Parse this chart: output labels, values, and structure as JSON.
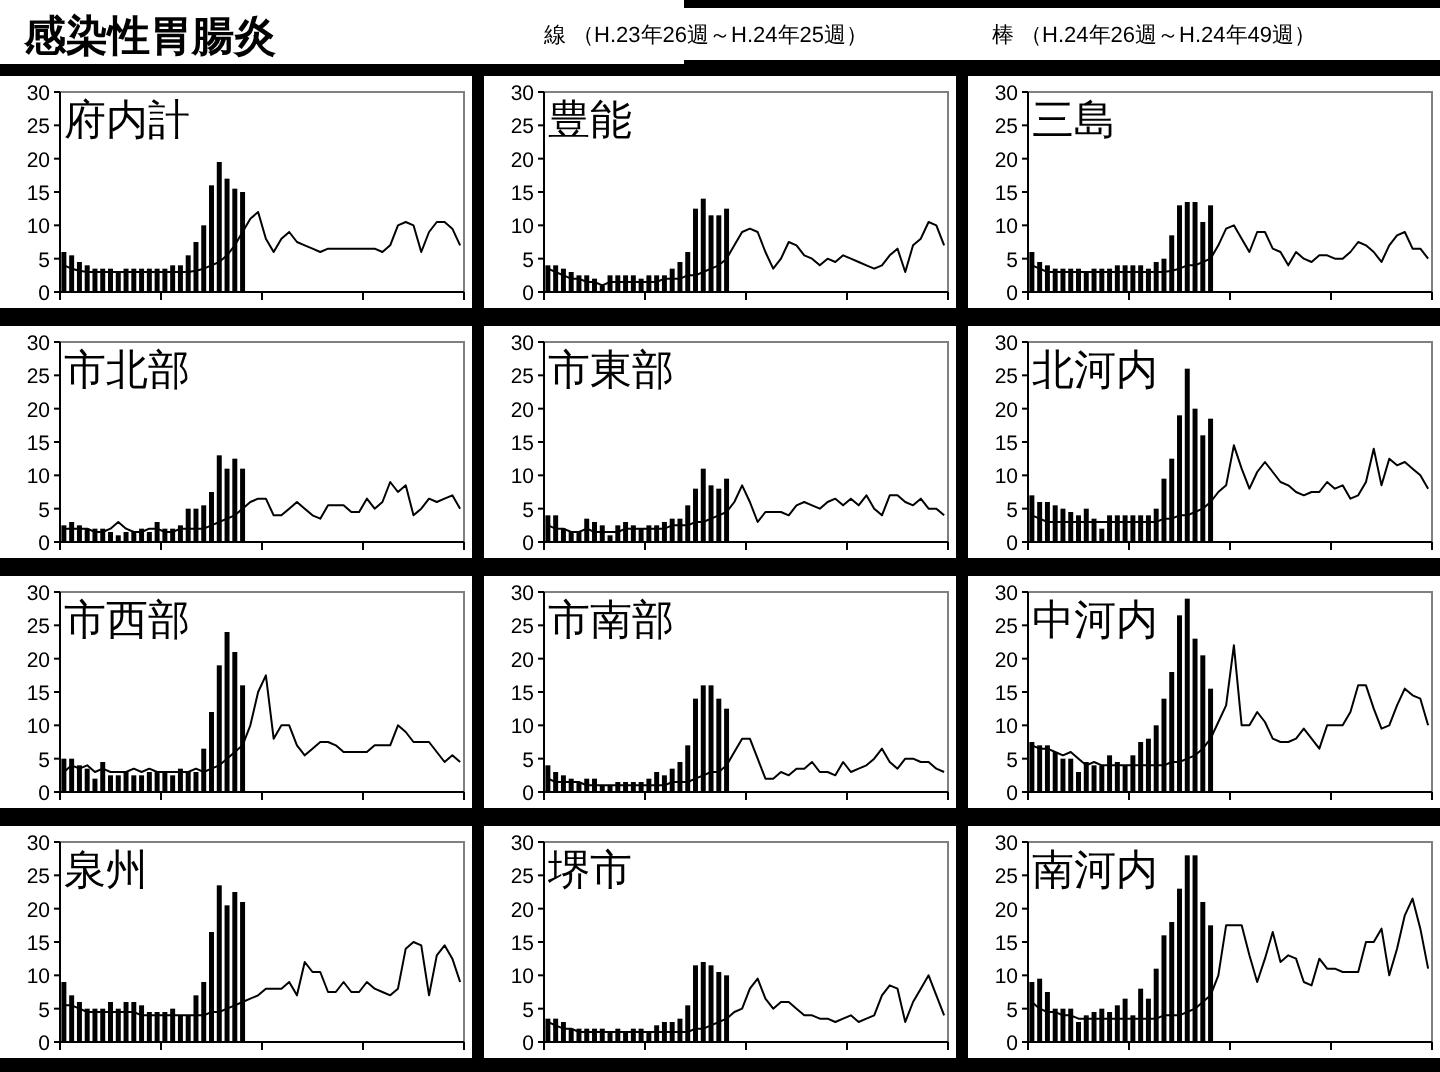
{
  "chart_data": [
    {
      "type": "other",
      "title": "感染性胃腸炎",
      "annotations": [
        "線 （H.23年26週～H.24年25週）",
        "棒 （H.24年26週～H.24年49週）"
      ]
    },
    {
      "type": "bar",
      "title": "府内計",
      "ylim": [
        0,
        30
      ],
      "yticks": [
        0,
        5,
        10,
        15,
        20,
        25,
        30
      ],
      "tick_labels": "y",
      "grid": false,
      "categories": [
        null,
        null,
        null,
        null,
        null,
        null,
        null,
        null,
        null,
        null,
        null,
        null,
        null,
        null,
        null,
        null,
        null,
        null,
        null,
        null,
        null,
        null,
        null,
        null,
        null,
        null,
        null,
        null,
        null,
        null,
        null,
        null,
        null,
        null,
        null,
        null,
        null,
        null,
        null,
        null,
        null,
        null,
        null,
        null,
        null,
        null,
        null,
        null,
        null,
        null,
        null,
        null
      ],
      "series": [
        {
          "type": "bar",
          "color": "#000000",
          "values": [
            6,
            5.5,
            4.5,
            4,
            3.5,
            3.5,
            3.5,
            3,
            3.5,
            3.5,
            3.5,
            3.5,
            3.5,
            3.5,
            4,
            4,
            5.5,
            7.5,
            10,
            16,
            19.5,
            17,
            15.5,
            15,
            null,
            null,
            null,
            null,
            null,
            null,
            null,
            null,
            null,
            null,
            null,
            null,
            null,
            null,
            null,
            null,
            null,
            null,
            null,
            null,
            null,
            null,
            null,
            null,
            null,
            null,
            null,
            null
          ]
        },
        {
          "type": "line",
          "color": "#000000",
          "values": [
            4,
            3.5,
            3.2,
            3,
            3,
            3,
            3,
            3,
            3,
            3,
            3,
            3,
            3,
            3,
            3,
            3,
            3,
            3.2,
            3.5,
            4,
            4.5,
            5.5,
            7,
            9,
            11,
            12,
            8,
            6,
            8,
            9,
            7.5,
            7,
            6.5,
            6,
            6.5,
            6.5,
            6.5,
            6.5,
            6.5,
            6.5,
            6.5,
            6,
            7,
            10,
            10.5,
            10,
            6,
            9,
            10.5,
            10.5,
            9.5,
            7
          ]
        }
      ]
    },
    {
      "type": "bar",
      "title": "豊能",
      "ylim": [
        0,
        30
      ],
      "yticks": [
        0,
        5,
        10,
        15,
        20,
        25,
        30
      ],
      "tick_labels": "y",
      "grid": false,
      "categories": [
        null,
        null,
        null,
        null,
        null,
        null,
        null,
        null,
        null,
        null,
        null,
        null,
        null,
        null,
        null,
        null,
        null,
        null,
        null,
        null,
        null,
        null,
        null,
        null,
        null,
        null,
        null,
        null,
        null,
        null,
        null,
        null,
        null,
        null,
        null,
        null,
        null,
        null,
        null,
        null,
        null,
        null,
        null,
        null,
        null,
        null,
        null,
        null,
        null,
        null,
        null,
        null
      ],
      "series": [
        {
          "type": "bar",
          "color": "#000000",
          "values": [
            4,
            4,
            3.5,
            3,
            2.5,
            2.5,
            2,
            1,
            2.5,
            2.5,
            2.5,
            2.5,
            2,
            2.5,
            2.5,
            2.5,
            3.5,
            4.5,
            6,
            12.5,
            14,
            11.5,
            11.5,
            12.5,
            null,
            null,
            null,
            null,
            null,
            null,
            null,
            null,
            null,
            null,
            null,
            null,
            null,
            null,
            null,
            null,
            null,
            null,
            null,
            null,
            null,
            null,
            null,
            null,
            null,
            null,
            null,
            null
          ]
        },
        {
          "type": "line",
          "color": "#000000",
          "values": [
            3.5,
            3,
            2.5,
            2,
            2,
            1.5,
            1.5,
            1,
            1.5,
            1.5,
            1.5,
            1.5,
            1.5,
            1.5,
            1.5,
            2,
            2,
            2,
            2.5,
            2.5,
            3,
            3.5,
            4,
            5,
            7,
            9,
            9.5,
            9,
            6,
            3.5,
            5,
            7.5,
            7,
            5.5,
            5,
            4,
            5,
            4.5,
            5.5,
            5,
            4.5,
            4,
            3.5,
            4,
            5.5,
            6.5,
            3,
            7,
            8,
            10.5,
            10,
            7
          ]
        }
      ]
    },
    {
      "type": "bar",
      "title": "三島",
      "ylim": [
        0,
        30
      ],
      "yticks": [
        0,
        5,
        10,
        15,
        20,
        25,
        30
      ],
      "tick_labels": "y",
      "grid": false,
      "categories": [
        null,
        null,
        null,
        null,
        null,
        null,
        null,
        null,
        null,
        null,
        null,
        null,
        null,
        null,
        null,
        null,
        null,
        null,
        null,
        null,
        null,
        null,
        null,
        null,
        null,
        null,
        null,
        null,
        null,
        null,
        null,
        null,
        null,
        null,
        null,
        null,
        null,
        null,
        null,
        null,
        null,
        null,
        null,
        null,
        null,
        null,
        null,
        null,
        null,
        null,
        null,
        null
      ],
      "series": [
        {
          "type": "bar",
          "color": "#000000",
          "values": [
            6,
            4.5,
            4,
            3.5,
            3.5,
            3.5,
            3.5,
            3,
            3.5,
            3.5,
            3.5,
            4,
            4,
            4,
            4,
            3.5,
            4.5,
            5,
            8.5,
            13,
            13.5,
            13.5,
            10.5,
            13,
            null,
            null,
            null,
            null,
            null,
            null,
            null,
            null,
            null,
            null,
            null,
            null,
            null,
            null,
            null,
            null,
            null,
            null,
            null,
            null,
            null,
            null,
            null,
            null,
            null,
            null,
            null,
            null
          ]
        },
        {
          "type": "line",
          "color": "#000000",
          "values": [
            4,
            3.5,
            3,
            3,
            3,
            3,
            3,
            3,
            3,
            3,
            3,
            3,
            3,
            3,
            3,
            3,
            3,
            3,
            3.2,
            3.5,
            4,
            4,
            4.5,
            5,
            7,
            9.5,
            10,
            8,
            6,
            9,
            9,
            6.5,
            6,
            4,
            6,
            5,
            4.5,
            5.5,
            5.5,
            5,
            5,
            6,
            7.5,
            7,
            6,
            4.5,
            7,
            8.5,
            9,
            6.5,
            6.5,
            5
          ]
        }
      ]
    },
    {
      "type": "bar",
      "title": "市北部",
      "ylim": [
        0,
        30
      ],
      "yticks": [
        0,
        5,
        10,
        15,
        20,
        25,
        30
      ],
      "tick_labels": "y",
      "grid": false,
      "categories": [
        null,
        null,
        null,
        null,
        null,
        null,
        null,
        null,
        null,
        null,
        null,
        null,
        null,
        null,
        null,
        null,
        null,
        null,
        null,
        null,
        null,
        null,
        null,
        null,
        null,
        null,
        null,
        null,
        null,
        null,
        null,
        null,
        null,
        null,
        null,
        null,
        null,
        null,
        null,
        null,
        null,
        null,
        null,
        null,
        null,
        null,
        null,
        null,
        null,
        null,
        null,
        null
      ],
      "series": [
        {
          "type": "bar",
          "color": "#000000",
          "values": [
            2.5,
            3,
            2.5,
            2,
            2,
            2,
            1.5,
            1,
            1.5,
            1.5,
            2,
            1.5,
            3,
            2,
            2,
            2.5,
            5,
            5,
            5.5,
            7.5,
            13,
            11,
            12.5,
            11,
            null,
            null,
            null,
            null,
            null,
            null,
            null,
            null,
            null,
            null,
            null,
            null,
            null,
            null,
            null,
            null,
            null,
            null,
            null,
            null,
            null,
            null,
            null,
            null,
            null,
            null,
            null,
            null
          ]
        },
        {
          "type": "line",
          "color": "#000000",
          "values": [
            2,
            2,
            2,
            2,
            1.5,
            1.5,
            2,
            3,
            2,
            1.5,
            1.5,
            2,
            2,
            1.5,
            1.5,
            2,
            2,
            2,
            2,
            2.5,
            3,
            3.5,
            4,
            5,
            6,
            6.5,
            6.5,
            4,
            4,
            5,
            6,
            5,
            4,
            3.5,
            5.5,
            5.5,
            5.5,
            4.5,
            4.5,
            6.5,
            5,
            6,
            9,
            7.5,
            8.5,
            4,
            5,
            6.5,
            6,
            6.5,
            7,
            5
          ]
        }
      ]
    },
    {
      "type": "bar",
      "title": "市東部",
      "ylim": [
        0,
        30
      ],
      "yticks": [
        0,
        5,
        10,
        15,
        20,
        25,
        30
      ],
      "tick_labels": "y",
      "grid": false,
      "categories": [
        null,
        null,
        null,
        null,
        null,
        null,
        null,
        null,
        null,
        null,
        null,
        null,
        null,
        null,
        null,
        null,
        null,
        null,
        null,
        null,
        null,
        null,
        null,
        null,
        null,
        null,
        null,
        null,
        null,
        null,
        null,
        null,
        null,
        null,
        null,
        null,
        null,
        null,
        null,
        null,
        null,
        null,
        null,
        null,
        null,
        null,
        null,
        null,
        null,
        null,
        null,
        null
      ],
      "series": [
        {
          "type": "bar",
          "color": "#000000",
          "values": [
            4,
            4,
            2,
            1.5,
            1.5,
            3.5,
            3,
            2.5,
            1,
            2.5,
            3,
            2.5,
            2,
            2.5,
            2.5,
            3,
            3.5,
            3.5,
            5.5,
            8,
            11,
            8.5,
            8,
            9.5,
            null,
            null,
            null,
            null,
            null,
            null,
            null,
            null,
            null,
            null,
            null,
            null,
            null,
            null,
            null,
            null,
            null,
            null,
            null,
            null,
            null,
            null,
            null,
            null,
            null,
            null,
            null,
            null
          ]
        },
        {
          "type": "line",
          "color": "#000000",
          "values": [
            2.5,
            2,
            2,
            1.5,
            1.5,
            2,
            1.5,
            1.5,
            1.5,
            1.5,
            2,
            2,
            2,
            2,
            2,
            2,
            2.5,
            2.5,
            2.5,
            3,
            3,
            3.5,
            4,
            4.5,
            6,
            8.5,
            6,
            3,
            4.5,
            4.5,
            4.5,
            4,
            5.5,
            6,
            5.5,
            5,
            6,
            6.5,
            5.5,
            6.5,
            5.5,
            7,
            5,
            4,
            7,
            7,
            6,
            5.5,
            6.5,
            5,
            5,
            4
          ]
        }
      ]
    },
    {
      "type": "bar",
      "title": "北河内",
      "ylim": [
        0,
        30
      ],
      "yticks": [
        0,
        5,
        10,
        15,
        20,
        25,
        30
      ],
      "tick_labels": "y",
      "grid": false,
      "categories": [
        null,
        null,
        null,
        null,
        null,
        null,
        null,
        null,
        null,
        null,
        null,
        null,
        null,
        null,
        null,
        null,
        null,
        null,
        null,
        null,
        null,
        null,
        null,
        null,
        null,
        null,
        null,
        null,
        null,
        null,
        null,
        null,
        null,
        null,
        null,
        null,
        null,
        null,
        null,
        null,
        null,
        null,
        null,
        null,
        null,
        null,
        null,
        null,
        null,
        null,
        null,
        null
      ],
      "series": [
        {
          "type": "bar",
          "color": "#000000",
          "values": [
            7,
            6,
            6,
            5.5,
            5,
            4.5,
            4,
            5,
            3.5,
            2,
            4,
            4,
            4,
            4,
            4,
            4,
            5,
            9.5,
            12.5,
            19,
            26,
            20,
            16,
            18.5,
            null,
            null,
            null,
            null,
            null,
            null,
            null,
            null,
            null,
            null,
            null,
            null,
            null,
            null,
            null,
            null,
            null,
            null,
            null,
            null,
            null,
            null,
            null,
            null,
            null,
            null,
            null,
            null
          ]
        },
        {
          "type": "line",
          "color": "#000000",
          "values": [
            4,
            3.5,
            3,
            3,
            3,
            3,
            3,
            3,
            3,
            3,
            3,
            3,
            3,
            3,
            3,
            3,
            3,
            3.5,
            3.5,
            4,
            4,
            4.5,
            5,
            6,
            7.5,
            8.5,
            14.5,
            11,
            8,
            10.5,
            12,
            10.5,
            9,
            8.5,
            7.5,
            7,
            7.5,
            7.5,
            9,
            8,
            8.5,
            6.5,
            7,
            9,
            14,
            8.5,
            12.5,
            11.5,
            12,
            11,
            10,
            8
          ]
        }
      ]
    },
    {
      "type": "bar",
      "title": "市西部",
      "ylim": [
        0,
        30
      ],
      "yticks": [
        0,
        5,
        10,
        15,
        20,
        25,
        30
      ],
      "tick_labels": "y",
      "grid": false,
      "categories": [
        null,
        null,
        null,
        null,
        null,
        null,
        null,
        null,
        null,
        null,
        null,
        null,
        null,
        null,
        null,
        null,
        null,
        null,
        null,
        null,
        null,
        null,
        null,
        null,
        null,
        null,
        null,
        null,
        null,
        null,
        null,
        null,
        null,
        null,
        null,
        null,
        null,
        null,
        null,
        null,
        null,
        null,
        null,
        null,
        null,
        null,
        null,
        null,
        null,
        null,
        null,
        null
      ],
      "series": [
        {
          "type": "bar",
          "color": "#000000",
          "values": [
            5,
            5,
            4,
            3.5,
            2,
            4.5,
            2.5,
            2.5,
            3,
            2.5,
            2.5,
            3,
            3,
            3,
            2.5,
            3.5,
            3,
            3,
            6.5,
            12,
            19,
            24,
            21,
            16,
            null,
            null,
            null,
            null,
            null,
            null,
            null,
            null,
            null,
            null,
            null,
            null,
            null,
            null,
            null,
            null,
            null,
            null,
            null,
            null,
            null,
            null,
            null,
            null,
            null,
            null,
            null,
            null
          ]
        },
        {
          "type": "line",
          "color": "#000000",
          "values": [
            3,
            4,
            3.5,
            4,
            3,
            3.5,
            3,
            3,
            3,
            3.5,
            3,
            3.5,
            3,
            3,
            3,
            3,
            3,
            3.5,
            3,
            3.5,
            4,
            5,
            6,
            7,
            10,
            15,
            17.5,
            8,
            10,
            10,
            7,
            5.5,
            6.5,
            7.5,
            7.5,
            7,
            6,
            6,
            6,
            6,
            7,
            7,
            7,
            10,
            9,
            7.5,
            7.5,
            7.5,
            6,
            4.5,
            5.5,
            4.5
          ]
        }
      ]
    },
    {
      "type": "bar",
      "title": "市南部",
      "ylim": [
        0,
        30
      ],
      "yticks": [
        0,
        5,
        10,
        15,
        20,
        25,
        30
      ],
      "tick_labels": "y",
      "grid": false,
      "categories": [
        null,
        null,
        null,
        null,
        null,
        null,
        null,
        null,
        null,
        null,
        null,
        null,
        null,
        null,
        null,
        null,
        null,
        null,
        null,
        null,
        null,
        null,
        null,
        null,
        null,
        null,
        null,
        null,
        null,
        null,
        null,
        null,
        null,
        null,
        null,
        null,
        null,
        null,
        null,
        null,
        null,
        null,
        null,
        null,
        null,
        null,
        null,
        null,
        null,
        null,
        null,
        null
      ],
      "series": [
        {
          "type": "bar",
          "color": "#000000",
          "values": [
            4,
            3,
            2.5,
            2,
            1.5,
            2,
            2,
            1,
            1,
            1.5,
            1.5,
            1.5,
            1.5,
            2,
            3,
            2.5,
            3.5,
            4.5,
            7,
            14,
            16,
            16,
            14,
            12.5,
            null,
            null,
            null,
            null,
            null,
            null,
            null,
            null,
            null,
            null,
            null,
            null,
            null,
            null,
            null,
            null,
            null,
            null,
            null,
            null,
            null,
            null,
            null,
            null,
            null,
            null,
            null,
            null
          ]
        },
        {
          "type": "line",
          "color": "#000000",
          "values": [
            2,
            1.5,
            1.5,
            1.5,
            1.5,
            1,
            1,
            1,
            1,
            1,
            1,
            1,
            1,
            1,
            1,
            1,
            1.5,
            1.5,
            1.5,
            2,
            2.5,
            3,
            3,
            4,
            6,
            8,
            8,
            5,
            2,
            2,
            3,
            2.5,
            3.5,
            3.5,
            4.5,
            3,
            3,
            2.5,
            4.5,
            3,
            3.5,
            4,
            5,
            6.5,
            4.5,
            3.5,
            5,
            5,
            4.5,
            4.5,
            3.5,
            3
          ]
        }
      ]
    },
    {
      "type": "bar",
      "title": "中河内",
      "ylim": [
        0,
        30
      ],
      "yticks": [
        0,
        5,
        10,
        15,
        20,
        25,
        30
      ],
      "tick_labels": "y",
      "grid": false,
      "categories": [
        null,
        null,
        null,
        null,
        null,
        null,
        null,
        null,
        null,
        null,
        null,
        null,
        null,
        null,
        null,
        null,
        null,
        null,
        null,
        null,
        null,
        null,
        null,
        null,
        null,
        null,
        null,
        null,
        null,
        null,
        null,
        null,
        null,
        null,
        null,
        null,
        null,
        null,
        null,
        null,
        null,
        null,
        null,
        null,
        null,
        null,
        null,
        null,
        null,
        null,
        null,
        null
      ],
      "series": [
        {
          "type": "bar",
          "color": "#000000",
          "values": [
            7.5,
            7,
            7,
            6,
            5,
            5,
            3,
            4.5,
            4,
            4,
            5.5,
            4.5,
            4,
            5.5,
            7.5,
            8,
            10,
            14,
            18,
            26.5,
            29,
            23,
            20.5,
            15.5,
            null,
            null,
            null,
            null,
            null,
            null,
            null,
            null,
            null,
            null,
            null,
            null,
            null,
            null,
            null,
            null,
            null,
            null,
            null,
            null,
            null,
            null,
            null,
            null,
            null,
            null,
            null,
            null
          ]
        },
        {
          "type": "line",
          "color": "#000000",
          "values": [
            7,
            6.5,
            6.5,
            6,
            5.5,
            6,
            5,
            4,
            4.5,
            4,
            4,
            4,
            4,
            4,
            4,
            4,
            4,
            4,
            4.5,
            4.5,
            5,
            5.5,
            6.5,
            8,
            10.5,
            13,
            22,
            10,
            10,
            12,
            10.5,
            8,
            7.5,
            7.5,
            8,
            9.5,
            8,
            6.5,
            10,
            10,
            10,
            12,
            16,
            16,
            12.5,
            9.5,
            10,
            13,
            15.5,
            14.5,
            14,
            10
          ]
        }
      ]
    },
    {
      "type": "bar",
      "title": "泉州",
      "ylim": [
        0,
        30
      ],
      "yticks": [
        0,
        5,
        10,
        15,
        20,
        25,
        30
      ],
      "tick_labels": "y",
      "grid": false,
      "categories": [
        null,
        null,
        null,
        null,
        null,
        null,
        null,
        null,
        null,
        null,
        null,
        null,
        null,
        null,
        null,
        null,
        null,
        null,
        null,
        null,
        null,
        null,
        null,
        null,
        null,
        null,
        null,
        null,
        null,
        null,
        null,
        null,
        null,
        null,
        null,
        null,
        null,
        null,
        null,
        null,
        null,
        null,
        null,
        null,
        null,
        null,
        null,
        null,
        null,
        null,
        null,
        null
      ],
      "series": [
        {
          "type": "bar",
          "color": "#000000",
          "values": [
            9,
            7,
            6,
            5,
            5,
            5,
            6,
            5,
            6,
            6,
            5.5,
            4.5,
            4.5,
            4.5,
            5,
            4,
            4,
            7,
            9,
            16.5,
            23.5,
            20.5,
            22.5,
            21,
            null,
            null,
            null,
            null,
            null,
            null,
            null,
            null,
            null,
            null,
            null,
            null,
            null,
            null,
            null,
            null,
            null,
            null,
            null,
            null,
            null,
            null,
            null,
            null,
            null,
            null,
            null,
            null
          ]
        },
        {
          "type": "line",
          "color": "#000000",
          "values": [
            5.5,
            5.5,
            5,
            4.5,
            4.5,
            4.5,
            4.5,
            4.5,
            4.5,
            4.5,
            4,
            4,
            4,
            4,
            4,
            4,
            4,
            4,
            4,
            4.5,
            4.5,
            5,
            5.5,
            6,
            6.5,
            7,
            8,
            8,
            8,
            9,
            7,
            12,
            10.5,
            10.5,
            7.5,
            7.5,
            9,
            7.5,
            7.5,
            9,
            8,
            7.5,
            7,
            8,
            14,
            15,
            14.5,
            7,
            13,
            14.5,
            12.5,
            9
          ]
        }
      ]
    },
    {
      "type": "bar",
      "title": "堺市",
      "ylim": [
        0,
        30
      ],
      "yticks": [
        0,
        5,
        10,
        15,
        20,
        25,
        30
      ],
      "tick_labels": "y",
      "grid": false,
      "categories": [
        null,
        null,
        null,
        null,
        null,
        null,
        null,
        null,
        null,
        null,
        null,
        null,
        null,
        null,
        null,
        null,
        null,
        null,
        null,
        null,
        null,
        null,
        null,
        null,
        null,
        null,
        null,
        null,
        null,
        null,
        null,
        null,
        null,
        null,
        null,
        null,
        null,
        null,
        null,
        null,
        null,
        null,
        null,
        null,
        null,
        null,
        null,
        null,
        null,
        null,
        null,
        null
      ],
      "series": [
        {
          "type": "bar",
          "color": "#000000",
          "values": [
            3.5,
            3.5,
            3,
            2,
            2,
            2,
            2,
            2,
            1.5,
            2,
            1.5,
            2,
            2,
            1.5,
            2.5,
            3,
            3,
            3.5,
            5.5,
            11.5,
            12,
            11.5,
            10.5,
            10,
            null,
            null,
            null,
            null,
            null,
            null,
            null,
            null,
            null,
            null,
            null,
            null,
            null,
            null,
            null,
            null,
            null,
            null,
            null,
            null,
            null,
            null,
            null,
            null,
            null,
            null,
            null,
            null
          ]
        },
        {
          "type": "line",
          "color": "#000000",
          "values": [
            3,
            2.5,
            2,
            2,
            1.5,
            1.5,
            1.5,
            1.5,
            1.5,
            1.5,
            1.5,
            1.5,
            1.5,
            1.5,
            1.5,
            1.5,
            1.5,
            1.5,
            1.5,
            2,
            2,
            2.5,
            3,
            3.5,
            4.5,
            5,
            8,
            9.5,
            6.5,
            5,
            6,
            6,
            5,
            4,
            4,
            3.5,
            3.5,
            3,
            3.5,
            4,
            3,
            3.5,
            4,
            7,
            8.5,
            8,
            3,
            6,
            8,
            10,
            7,
            4
          ]
        }
      ]
    },
    {
      "type": "bar",
      "title": "南河内",
      "ylim": [
        0,
        30
      ],
      "yticks": [
        0,
        5,
        10,
        15,
        20,
        25,
        30
      ],
      "tick_labels": "y",
      "grid": false,
      "categories": [
        null,
        null,
        null,
        null,
        null,
        null,
        null,
        null,
        null,
        null,
        null,
        null,
        null,
        null,
        null,
        null,
        null,
        null,
        null,
        null,
        null,
        null,
        null,
        null,
        null,
        null,
        null,
        null,
        null,
        null,
        null,
        null,
        null,
        null,
        null,
        null,
        null,
        null,
        null,
        null,
        null,
        null,
        null,
        null,
        null,
        null,
        null,
        null,
        null,
        null,
        null,
        null
      ],
      "series": [
        {
          "type": "bar",
          "color": "#000000",
          "values": [
            9,
            9.5,
            7.5,
            5,
            5,
            5,
            3,
            4,
            4.5,
            5,
            4.5,
            5.5,
            6.5,
            4,
            8,
            6.5,
            11,
            16,
            18,
            23,
            28,
            28,
            21,
            17.5,
            null,
            null,
            null,
            null,
            null,
            null,
            null,
            null,
            null,
            null,
            null,
            null,
            null,
            null,
            null,
            null,
            null,
            null,
            null,
            null,
            null,
            null,
            null,
            null,
            null,
            null,
            null,
            null
          ]
        },
        {
          "type": "line",
          "color": "#000000",
          "values": [
            6,
            5,
            4.5,
            4.5,
            4,
            4,
            3.5,
            3.5,
            3.5,
            3.5,
            3.5,
            3.5,
            3.5,
            3.5,
            3.5,
            3.5,
            3.5,
            4,
            4,
            4,
            4.5,
            5,
            6,
            7,
            10,
            17.5,
            17.5,
            17.5,
            13,
            9,
            12.5,
            16.5,
            12,
            13,
            12.5,
            9,
            8.5,
            12.5,
            11,
            11,
            10.5,
            10.5,
            10.5,
            15,
            15,
            17,
            10,
            14,
            19,
            21.5,
            17,
            11
          ]
        }
      ]
    }
  ]
}
